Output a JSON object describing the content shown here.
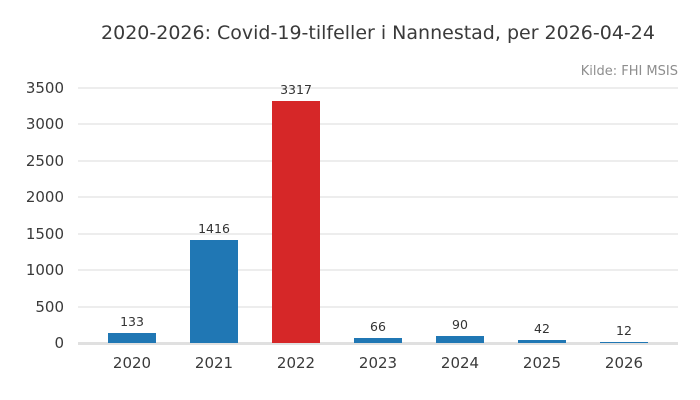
{
  "chart_data": {
    "type": "bar",
    "title": "2020-2026: Covid-19-tilfeller i Nannestad, per 2026-04-24",
    "source": "Kilde: FHI MSIS",
    "categories": [
      "2020",
      "2021",
      "2022",
      "2023",
      "2024",
      "2025",
      "2026"
    ],
    "values": [
      133,
      1416,
      3317,
      66,
      90,
      42,
      12
    ],
    "bar_colors": [
      "#2077b4",
      "#2077b4",
      "#d62728",
      "#2077b4",
      "#2077b4",
      "#2077b4",
      "#2077b4"
    ],
    "value_labels": [
      "133",
      "1416",
      "3317",
      "66",
      "90",
      "42",
      "12"
    ],
    "yticks": [
      0,
      500,
      1000,
      1500,
      2000,
      2500,
      3000,
      3500
    ],
    "ylim": [
      0,
      3500
    ],
    "xlabel": "",
    "ylabel": "",
    "grid": "horizontal",
    "legend": "none",
    "colors": {
      "bar_default": "#2077b4",
      "bar_highlight": "#d62728",
      "grid": "#ededed",
      "axis_line": "#e0e0e0",
      "title_text": "#3a3a3a",
      "tick_text": "#3a3a3a",
      "source_text": "#8e8e8e"
    }
  }
}
